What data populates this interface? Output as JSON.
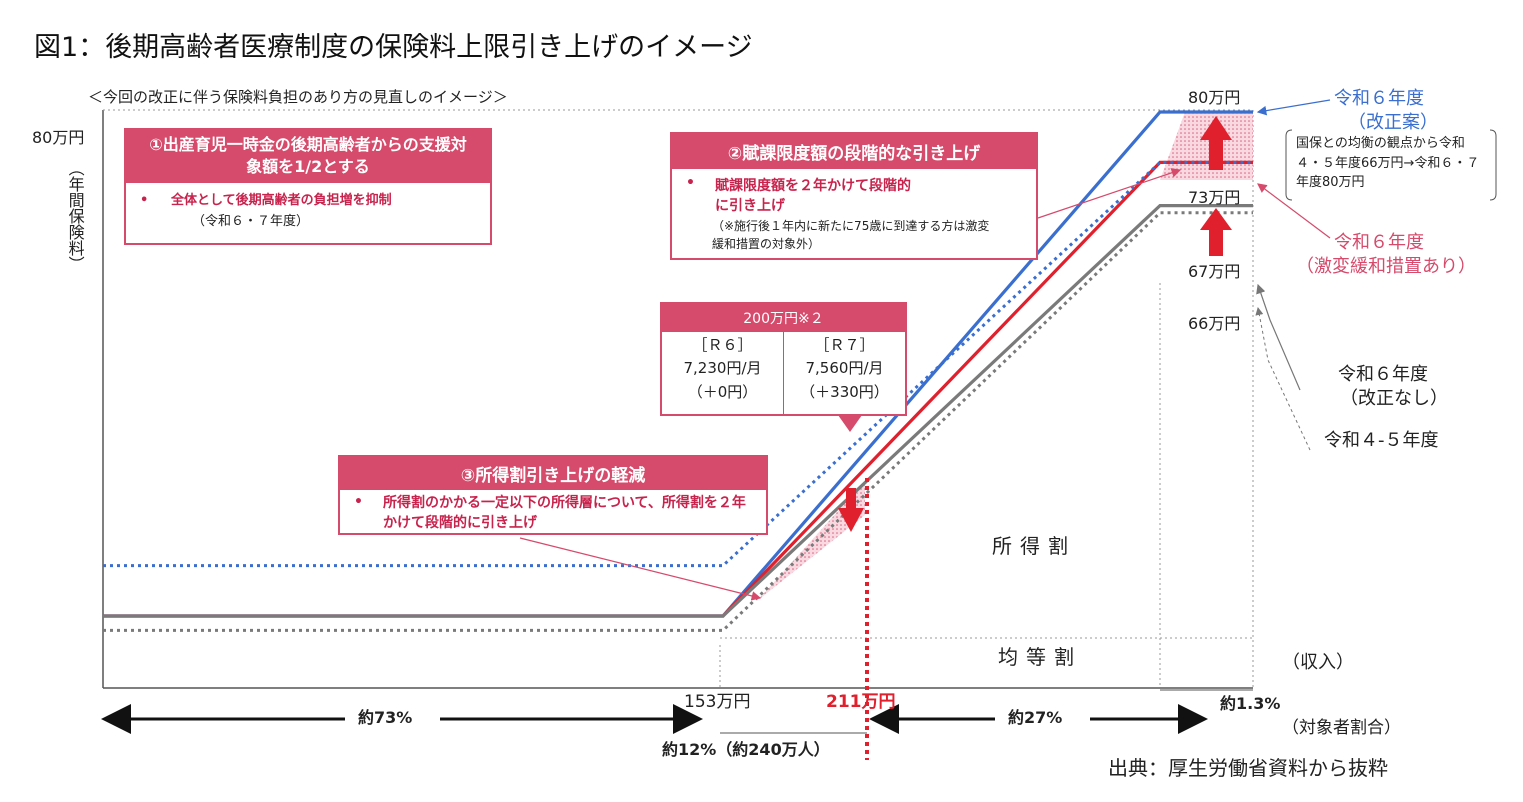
{
  "title": "図1：後期高齢者医療制度の保険料上限引き上げのイメージ",
  "subtitle": "＜今回の改正に伴う保険料負担のあり方の見直しのイメージ＞",
  "source": "出典：厚生労働省資料から抜粋",
  "colors": {
    "blue": "#3a6fd0",
    "red": "#e0202c",
    "gray": "#7a7a7a",
    "pink": "#d64a6b"
  },
  "chart_data": {
    "type": "line",
    "ylabel": "（年間保険料）",
    "xlabel": "（収入）",
    "y_axis_label": "80万円",
    "x_ticks": [
      "153万円",
      "211万円"
    ],
    "series": [
      {
        "name": "令和６年度（改正案）",
        "points": [
          [
            0,
            10
          ],
          [
            153,
            10
          ],
          [
            240,
            80
          ],
          [
            290,
            80
          ]
        ],
        "style": "solid",
        "color": "#3a6fd0"
      },
      {
        "name": "令和６年度（激変緩和措置あり）",
        "points": [
          [
            0,
            10
          ],
          [
            153,
            10
          ],
          [
            240,
            73
          ],
          [
            290,
            73
          ]
        ],
        "style": "solid",
        "color": "#e0202c"
      },
      {
        "name": "令和６年度（改正なし）",
        "points": [
          [
            0,
            10
          ],
          [
            153,
            10
          ],
          [
            240,
            67
          ],
          [
            290,
            67
          ]
        ],
        "style": "solid",
        "color": "#7a7a7a"
      },
      {
        "name": "令和４-５年度",
        "points": [
          [
            0,
            8
          ],
          [
            153,
            8
          ],
          [
            240,
            66
          ],
          [
            290,
            66
          ]
        ],
        "style": "dotted",
        "color": "#7a7a7a"
      },
      {
        "name": "",
        "points": [
          [
            0,
            17
          ],
          [
            153,
            17
          ],
          [
            240,
            73
          ],
          [
            290,
            73
          ]
        ],
        "style": "dotted",
        "color": "#3a6fd0"
      }
    ],
    "cap_labels": [
      "80万円",
      "73万円",
      "67万円",
      "66万円"
    ],
    "regions": [
      "所得割",
      "均等割"
    ],
    "shares": [
      "約73%",
      "約12%（約240万人）",
      "約27%",
      "約1.3%"
    ],
    "share_label": "（対象者割合）",
    "grid": false
  },
  "box1": {
    "head": "①出産育児一時金の後期高齢者からの支援対象額を1/2とする",
    "bullet": "全体として後期高齢者の負担増を抑制",
    "note": "（令和６・７年度）"
  },
  "box2": {
    "head": "②賦課限度額の段階的な引き上げ",
    "bullet": "賦課限度額を２年かけて段階的に引き上げ",
    "note": "（※施行後１年内に新たに75歳に到達する方は激変緩和措置の対象外）"
  },
  "box3": {
    "head": "③所得割引き上げの軽減",
    "bullet": "所得割のかかる一定以下の所得層について、所得割を２年かけて段階的に引き上げ"
  },
  "table": {
    "head": "200万円※２",
    "cols": [
      {
        "year": "［Ｒ６］",
        "monthly": "7,230円/月",
        "diff": "（＋0円）"
      },
      {
        "year": "［Ｒ７］",
        "monthly": "7,560円/月",
        "diff": "（＋330円）"
      }
    ]
  },
  "legend": {
    "blue_label1": "令和６年度",
    "blue_label2": "（改正案）",
    "blue_note": "国保との均衡の観点から令和４・５年度66万円→令和６・７年度80万円",
    "red_label1": "令和６年度",
    "red_label2": "（激変緩和措置あり）",
    "gray_label1": "令和６年度",
    "gray_label2": "（改正なし）",
    "dotted_label": "令和４-５年度"
  }
}
